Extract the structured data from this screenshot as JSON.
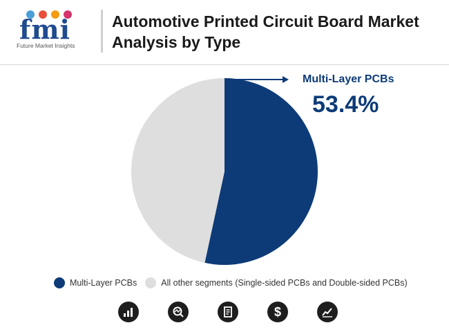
{
  "brand": {
    "logo_text": "fmi",
    "tagline": "Future Market Insights",
    "dot_colors": [
      "#4a9fd8",
      "#e94e3c",
      "#f39c12",
      "#d6336c"
    ]
  },
  "title": "Automotive Printed Circuit Board Market Analysis by Type",
  "chart_data": {
    "type": "pie",
    "title": "Automotive Printed Circuit Board Market Analysis by Type",
    "slices": [
      {
        "label": "Multi-Layer PCBs",
        "value": 53.4,
        "color": "#0d3b78"
      },
      {
        "label": "All other segments (Single-sided PCBs and Double-sided PCBs)",
        "value": 46.6,
        "color": "#dedede"
      }
    ],
    "start_angle_deg": 0,
    "direction": "clockwise",
    "legend_position": "bottom"
  },
  "callout": {
    "label": "Multi-Layer PCBs",
    "value": "53.4%"
  },
  "footer_icons": [
    "bar-chart-icon",
    "magnifier-chart-icon",
    "document-icon",
    "dollar-icon",
    "trend-line-icon"
  ],
  "footer_dollar": "$"
}
